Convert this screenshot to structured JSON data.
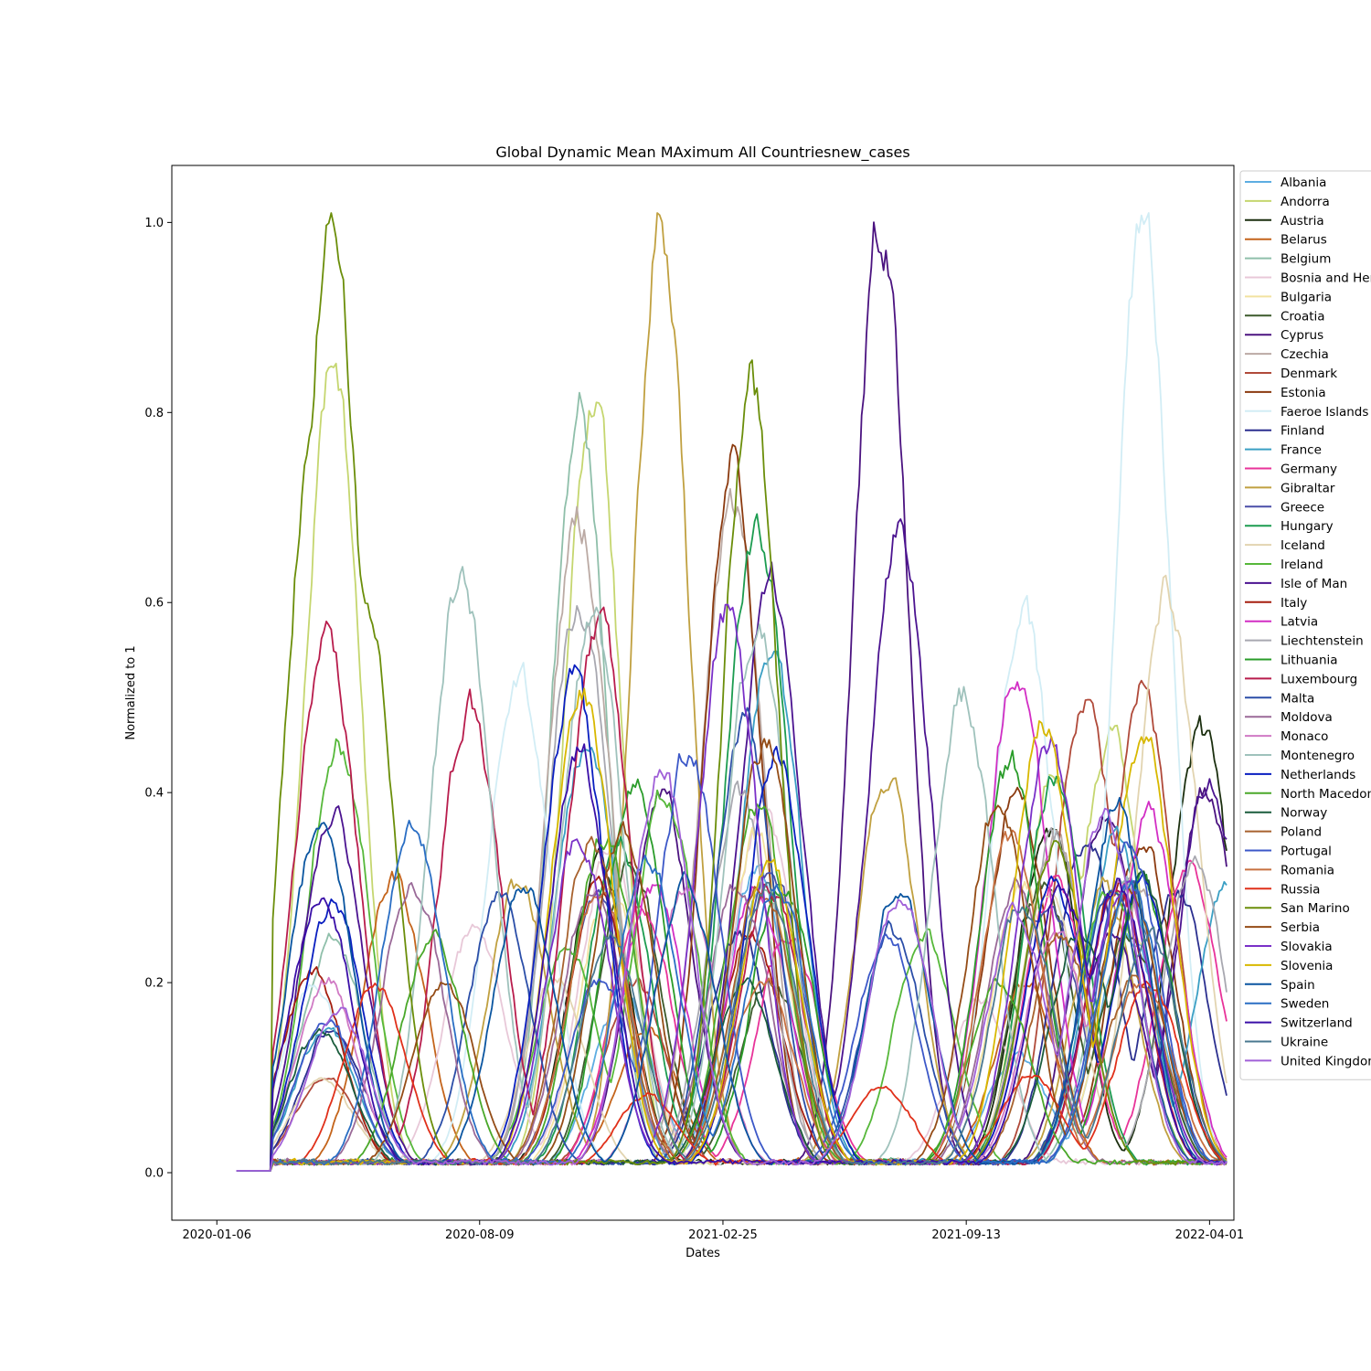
{
  "chart_data": {
    "type": "line",
    "title": "Global Dynamic Mean MAximum All Countriesnew_cases",
    "xlabel": "Dates",
    "ylabel": "Normalized to 1",
    "x_ticks": [
      "2020-01-06",
      "2020-08-09",
      "2021-02-25",
      "2021-09-13",
      "2022-04-01"
    ],
    "y_ticks": [
      "0.0",
      "0.2",
      "0.4",
      "0.6",
      "0.8",
      "1.0"
    ],
    "x_range": [
      "2019-11-30",
      "2022-04-21"
    ],
    "ylim": [
      -0.05,
      1.06
    ],
    "grid": false,
    "legend_position": "outside-right",
    "series": [
      {
        "name": "Albania",
        "color": "#5dade2",
        "peaks": [
          [
            "2020-12-05",
            0.18
          ],
          [
            "2021-03-25",
            0.32
          ],
          [
            "2021-10-25",
            0.12
          ],
          [
            "2022-01-25",
            0.25
          ]
        ]
      },
      {
        "name": "Andorra",
        "color": "#c5d66f",
        "peaks": [
          [
            "2020-04-10",
            0.86
          ],
          [
            "2020-11-10",
            0.82
          ],
          [
            "2021-11-25",
            0.42
          ],
          [
            "2022-01-10",
            0.45
          ]
        ]
      },
      {
        "name": "Austria",
        "color": "#1b2f0f",
        "peaks": [
          [
            "2020-11-15",
            0.32
          ],
          [
            "2021-11-20",
            0.36
          ],
          [
            "2022-03-25",
            0.46
          ]
        ]
      },
      {
        "name": "Belarus",
        "color": "#c4641b",
        "peaks": [
          [
            "2020-05-30",
            0.31
          ],
          [
            "2020-12-25",
            0.15
          ],
          [
            "2021-11-01",
            0.2
          ]
        ]
      },
      {
        "name": "Belgium",
        "color": "#8fbfaa",
        "peaks": [
          [
            "2020-04-10",
            0.25
          ],
          [
            "2020-10-30",
            0.8
          ],
          [
            "2021-03-30",
            0.3
          ],
          [
            "2022-01-20",
            0.3
          ]
        ]
      },
      {
        "name": "Bosnia and Herzegovina",
        "color": "#e8c8d8",
        "peaks": [
          [
            "2020-08-05",
            0.26
          ],
          [
            "2020-11-25",
            0.34
          ],
          [
            "2021-03-30",
            0.38
          ],
          [
            "2021-09-25",
            0.18
          ]
        ]
      },
      {
        "name": "Bulgaria",
        "color": "#f2e2a0",
        "peaks": [
          [
            "2020-11-25",
            0.3
          ],
          [
            "2021-03-25",
            0.35
          ],
          [
            "2021-10-30",
            0.3
          ],
          [
            "2022-01-25",
            0.25
          ]
        ]
      },
      {
        "name": "Croatia",
        "color": "#3c5a2c",
        "peaks": [
          [
            "2020-12-10",
            0.33
          ],
          [
            "2021-04-05",
            0.2
          ],
          [
            "2021-11-15",
            0.3
          ],
          [
            "2022-01-25",
            0.25
          ]
        ]
      },
      {
        "name": "Cyprus",
        "color": "#4b1380",
        "peaks": [
          [
            "2021-01-05",
            0.4
          ],
          [
            "2021-07-05",
            1.0
          ],
          [
            "2022-01-05",
            0.38
          ],
          [
            "2022-03-30",
            0.4
          ]
        ]
      },
      {
        "name": "Czechia",
        "color": "#bbaaa4",
        "peaks": [
          [
            "2020-10-30",
            0.68
          ],
          [
            "2021-03-05",
            0.7
          ],
          [
            "2021-11-25",
            0.35
          ],
          [
            "2022-02-05",
            0.3
          ]
        ]
      },
      {
        "name": "Denmark",
        "color": "#b04a3a",
        "peaks": [
          [
            "2020-04-05",
            0.1
          ],
          [
            "2020-12-15",
            0.2
          ],
          [
            "2021-12-20",
            0.5
          ],
          [
            "2022-02-05",
            0.5
          ]
        ]
      },
      {
        "name": "Estonia",
        "color": "#8b3a0f",
        "peaks": [
          [
            "2021-03-05",
            0.75
          ],
          [
            "2021-10-25",
            0.4
          ],
          [
            "2022-02-05",
            0.35
          ]
        ]
      },
      {
        "name": "Faeroe Islands",
        "color": "#d2edf5",
        "peaks": [
          [
            "2020-03-25",
            0.2
          ],
          [
            "2020-09-10",
            0.53
          ],
          [
            "2021-10-30",
            0.58
          ],
          [
            "2022-02-05",
            1.0
          ]
        ]
      },
      {
        "name": "Finland",
        "color": "#2b2f8f",
        "peaks": [
          [
            "2020-04-10",
            0.15
          ],
          [
            "2021-03-10",
            0.25
          ],
          [
            "2021-12-20",
            0.35
          ],
          [
            "2022-03-05",
            0.3
          ]
        ]
      },
      {
        "name": "France",
        "color": "#3a9fc4",
        "peaks": [
          [
            "2020-04-05",
            0.15
          ],
          [
            "2020-11-05",
            0.45
          ],
          [
            "2021-04-05",
            0.55
          ],
          [
            "2022-01-15",
            0.35
          ],
          [
            "2022-04-15",
            0.3
          ]
        ]
      },
      {
        "name": "Germany",
        "color": "#e83399",
        "peaks": [
          [
            "2020-12-20",
            0.28
          ],
          [
            "2021-04-20",
            0.25
          ],
          [
            "2021-11-25",
            0.3
          ],
          [
            "2022-03-15",
            0.33
          ]
        ]
      },
      {
        "name": "Gibraltar",
        "color": "#c0a040",
        "peaks": [
          [
            "2020-09-10",
            0.3
          ],
          [
            "2021-01-05",
            1.0
          ],
          [
            "2021-07-10",
            0.41
          ],
          [
            "2022-01-05",
            0.3
          ]
        ]
      },
      {
        "name": "Greece",
        "color": "#4a4ea8",
        "peaks": [
          [
            "2020-11-15",
            0.3
          ],
          [
            "2021-04-05",
            0.32
          ],
          [
            "2021-11-20",
            0.28
          ],
          [
            "2022-01-25",
            0.3
          ]
        ]
      },
      {
        "name": "Hungary",
        "color": "#1c9c50",
        "peaks": [
          [
            "2020-12-01",
            0.35
          ],
          [
            "2021-03-25",
            0.68
          ],
          [
            "2021-11-25",
            0.42
          ]
        ]
      },
      {
        "name": "Iceland",
        "color": "#e2d4b0",
        "peaks": [
          [
            "2020-04-01",
            0.1
          ],
          [
            "2020-10-10",
            0.2
          ],
          [
            "2021-11-20",
            0.3
          ],
          [
            "2022-02-25",
            0.61
          ]
        ]
      },
      {
        "name": "Ireland",
        "color": "#56b83a",
        "peaks": [
          [
            "2020-04-15",
            0.45
          ],
          [
            "2020-10-20",
            0.24
          ],
          [
            "2021-01-08",
            0.4
          ],
          [
            "2021-08-10",
            0.25
          ],
          [
            "2022-01-10",
            0.3
          ]
        ]
      },
      {
        "name": "Isle of Man",
        "color": "#4b1390",
        "peaks": [
          [
            "2020-04-10",
            0.38
          ],
          [
            "2021-04-05",
            0.63
          ],
          [
            "2021-07-20",
            0.67
          ],
          [
            "2022-01-10",
            0.25
          ],
          [
            "2022-04-01",
            0.41
          ]
        ]
      },
      {
        "name": "Italy",
        "color": "#a51f0f",
        "peaks": [
          [
            "2020-03-25",
            0.21
          ],
          [
            "2020-11-15",
            0.3
          ],
          [
            "2021-03-20",
            0.25
          ],
          [
            "2022-01-15",
            0.3
          ]
        ]
      },
      {
        "name": "Latvia",
        "color": "#d22ec4",
        "peaks": [
          [
            "2020-12-30",
            0.3
          ],
          [
            "2021-03-25",
            0.3
          ],
          [
            "2021-10-25",
            0.53
          ],
          [
            "2022-02-10",
            0.37
          ]
        ]
      },
      {
        "name": "Liechtenstein",
        "color": "#a8a8b0",
        "peaks": [
          [
            "2020-10-30",
            0.6
          ],
          [
            "2021-03-10",
            0.4
          ],
          [
            "2021-11-25",
            0.35
          ],
          [
            "2022-03-20",
            0.33
          ]
        ]
      },
      {
        "name": "Lithuania",
        "color": "#2a9c2a",
        "peaks": [
          [
            "2020-12-15",
            0.4
          ],
          [
            "2021-04-15",
            0.3
          ],
          [
            "2021-10-20",
            0.43
          ],
          [
            "2022-02-05",
            0.3
          ]
        ]
      },
      {
        "name": "Luxembourg",
        "color": "#b81c4c",
        "peaks": [
          [
            "2020-04-05",
            0.57
          ],
          [
            "2020-08-01",
            0.49
          ],
          [
            "2020-11-15",
            0.58
          ],
          [
            "2021-04-05",
            0.3
          ],
          [
            "2022-01-15",
            0.3
          ]
        ]
      },
      {
        "name": "Malta",
        "color": "#2b4ea8",
        "peaks": [
          [
            "2020-08-25",
            0.29
          ],
          [
            "2021-03-15",
            0.47
          ],
          [
            "2021-07-15",
            0.25
          ],
          [
            "2022-01-10",
            0.3
          ]
        ]
      },
      {
        "name": "Moldova",
        "color": "#9a6a98",
        "peaks": [
          [
            "2020-06-15",
            0.3
          ],
          [
            "2020-11-10",
            0.3
          ],
          [
            "2021-03-10",
            0.3
          ],
          [
            "2021-10-25",
            0.3
          ]
        ]
      },
      {
        "name": "Monaco",
        "color": "#d07ac4",
        "peaks": [
          [
            "2020-04-05",
            0.2
          ],
          [
            "2021-01-25",
            0.3
          ],
          [
            "2021-11-25",
            0.25
          ],
          [
            "2022-01-20",
            0.3
          ]
        ]
      },
      {
        "name": "Montenegro",
        "color": "#9fc2bc",
        "peaks": [
          [
            "2020-07-25",
            0.62
          ],
          [
            "2020-11-10",
            0.58
          ],
          [
            "2021-03-25",
            0.57
          ],
          [
            "2021-09-10",
            0.5
          ],
          [
            "2022-01-25",
            0.3
          ]
        ]
      },
      {
        "name": "Netherlands",
        "color": "#0a1fc0",
        "peaks": [
          [
            "2020-04-10",
            0.28
          ],
          [
            "2020-10-25",
            0.51
          ],
          [
            "2021-04-10",
            0.44
          ],
          [
            "2021-11-25",
            0.3
          ],
          [
            "2022-02-05",
            0.3
          ]
        ]
      },
      {
        "name": "North Macedonia",
        "color": "#4aa82a",
        "peaks": [
          [
            "2020-07-01",
            0.25
          ],
          [
            "2020-11-20",
            0.35
          ],
          [
            "2021-03-25",
            0.38
          ],
          [
            "2021-10-10",
            0.2
          ]
        ]
      },
      {
        "name": "Norway",
        "color": "#1a5c3c",
        "peaks": [
          [
            "2020-04-01",
            0.15
          ],
          [
            "2021-03-15",
            0.2
          ],
          [
            "2021-12-15",
            0.25
          ],
          [
            "2022-02-05",
            0.3
          ]
        ]
      },
      {
        "name": "Poland",
        "color": "#a8622e",
        "peaks": [
          [
            "2020-11-10",
            0.35
          ],
          [
            "2021-03-30",
            0.3
          ],
          [
            "2021-11-30",
            0.25
          ],
          [
            "2022-01-30",
            0.2
          ]
        ]
      },
      {
        "name": "Portugal",
        "color": "#3c58c8",
        "peaks": [
          [
            "2020-04-05",
            0.16
          ],
          [
            "2020-11-15",
            0.2
          ],
          [
            "2021-01-28",
            0.44
          ],
          [
            "2021-07-10",
            0.25
          ],
          [
            "2022-01-25",
            0.35
          ]
        ]
      },
      {
        "name": "Romania",
        "color": "#c87040",
        "peaks": [
          [
            "2020-11-15",
            0.3
          ],
          [
            "2021-03-30",
            0.2
          ],
          [
            "2021-10-20",
            0.35
          ],
          [
            "2022-02-05",
            0.2
          ]
        ]
      },
      {
        "name": "Russia",
        "color": "#e0301a",
        "peaks": [
          [
            "2020-05-15",
            0.2
          ],
          [
            "2020-12-25",
            0.08
          ],
          [
            "2021-07-05",
            0.09
          ],
          [
            "2021-11-05",
            0.1
          ],
          [
            "2022-02-10",
            0.2
          ]
        ]
      },
      {
        "name": "San Marino",
        "color": "#6b8e0a",
        "peaks": [
          [
            "2020-03-25",
            0.78
          ],
          [
            "2020-04-10",
            1.0
          ],
          [
            "2020-05-05",
            0.62
          ],
          [
            "2021-03-20",
            0.83
          ],
          [
            "2021-11-25",
            0.35
          ]
        ]
      },
      {
        "name": "Serbia",
        "color": "#944c16",
        "peaks": [
          [
            "2020-07-10",
            0.2
          ],
          [
            "2020-12-05",
            0.36
          ],
          [
            "2021-04-01",
            0.45
          ],
          [
            "2021-10-10",
            0.39
          ],
          [
            "2022-01-25",
            0.3
          ]
        ]
      },
      {
        "name": "Slovakia",
        "color": "#7a30c8",
        "peaks": [
          [
            "2020-10-30",
            0.35
          ],
          [
            "2021-03-01",
            0.58
          ],
          [
            "2021-11-20",
            0.45
          ],
          [
            "2022-01-20",
            0.3
          ]
        ]
      },
      {
        "name": "Slovenia",
        "color": "#d8b800",
        "peaks": [
          [
            "2020-11-01",
            0.5
          ],
          [
            "2021-04-05",
            0.32
          ],
          [
            "2021-11-15",
            0.47
          ],
          [
            "2022-02-05",
            0.46
          ]
        ]
      },
      {
        "name": "Spain",
        "color": "#0a55a0",
        "peaks": [
          [
            "2020-04-01",
            0.37
          ],
          [
            "2020-09-15",
            0.3
          ],
          [
            "2021-01-25",
            0.3
          ],
          [
            "2021-07-20",
            0.3
          ],
          [
            "2022-01-15",
            0.38
          ]
        ]
      },
      {
        "name": "Sweden",
        "color": "#2a6ec4",
        "peaks": [
          [
            "2020-06-15",
            0.37
          ],
          [
            "2020-12-25",
            0.33
          ],
          [
            "2021-04-10",
            0.3
          ],
          [
            "2022-01-25",
            0.3
          ]
        ]
      },
      {
        "name": "Switzerland",
        "color": "#3a0fa8",
        "peaks": [
          [
            "2020-04-01",
            0.29
          ],
          [
            "2020-10-30",
            0.44
          ],
          [
            "2021-11-30",
            0.3
          ],
          [
            "2022-01-15",
            0.3
          ]
        ]
      },
      {
        "name": "Ukraine",
        "color": "#4a7890",
        "peaks": [
          [
            "2020-11-25",
            0.25
          ],
          [
            "2021-04-01",
            0.3
          ],
          [
            "2021-10-30",
            0.28
          ],
          [
            "2022-02-10",
            0.25
          ]
        ]
      },
      {
        "name": "United Kingdom",
        "color": "#a060d8",
        "peaks": [
          [
            "2020-04-15",
            0.17
          ],
          [
            "2021-01-05",
            0.42
          ],
          [
            "2021-07-20",
            0.29
          ],
          [
            "2021-10-25",
            0.27
          ],
          [
            "2022-01-05",
            0.38
          ]
        ]
      }
    ]
  }
}
